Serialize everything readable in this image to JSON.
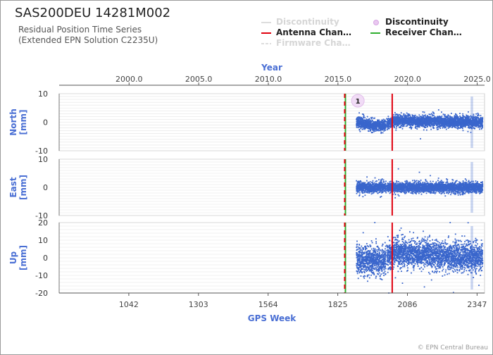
{
  "header": {
    "title": "SAS200DEU 14281M002",
    "subtitle_line1": "Residual Position Time Series",
    "subtitle_line2": "(Extended EPN Solution C2235U)"
  },
  "legend": {
    "items": [
      {
        "label": "Discontinuity",
        "style": "line",
        "color": "#dddddd",
        "dim": true
      },
      {
        "label": "Discontinuity",
        "style": "dot",
        "color": "#e9c8f0",
        "dim": false
      },
      {
        "label": "Antenna Chan…",
        "style": "line",
        "color": "#e0000f",
        "dim": false
      },
      {
        "label": "Receiver Chan…",
        "style": "line",
        "color": "#2fae2f",
        "dim": false
      },
      {
        "label": "Firmware Cha…",
        "style": "dash",
        "color": "#dddddd",
        "dim": true
      }
    ]
  },
  "copyright": "© EPN Central Bureau",
  "colors": {
    "series": "#3a66cc",
    "axis_label": "#4a6fd4",
    "antenna_change": "#e0000f",
    "receiver_change": "#2fae2f",
    "grid": "#e4e4e4"
  },
  "chart_data": {
    "type": "scatter",
    "top_axis": {
      "label": "Year",
      "ticks": [
        "2000.0",
        "2005.0",
        "2010.0",
        "2015.0",
        "2020.0",
        "2025.0"
      ],
      "values": [
        2000.0,
        2005.0,
        2010.0,
        2015.0,
        2020.0,
        2025.0
      ]
    },
    "x_axis": {
      "label": "GPS Week",
      "range": [
        781,
        2375
      ],
      "ticks": [
        "1042",
        "1303",
        "1564",
        "1825",
        "2086",
        "2347"
      ],
      "values": [
        1042,
        1303,
        1564,
        1825,
        2086,
        2347
      ]
    },
    "data_start_week": 1895,
    "data_end_week": 2368,
    "antenna_change_weeks": [
      1851,
      2029
    ],
    "receiver_change_weeks": [
      1851
    ],
    "discontinuity_markers": [
      {
        "week": 1895,
        "label": "1"
      }
    ],
    "panels": [
      {
        "name": "North",
        "ylabel_line1": "North",
        "ylabel_line2": "[mm]",
        "ylim": [
          -10,
          10
        ],
        "yticks": [
          "10",
          "0",
          "-10"
        ],
        "ytick_values": [
          10,
          0,
          -10
        ],
        "noise_mm": 1.0,
        "trend": [
          [
            1895,
            0.0
          ],
          [
            1960,
            -1.2
          ],
          [
            2000,
            -1.0
          ],
          [
            2040,
            0.5
          ],
          [
            2368,
            0.0
          ]
        ]
      },
      {
        "name": "East",
        "ylabel_line1": "East",
        "ylabel_line2": "[mm]",
        "ylim": [
          -10,
          10
        ],
        "yticks": [
          "10",
          "0",
          "-10"
        ],
        "ytick_values": [
          10,
          0,
          -10
        ],
        "noise_mm": 0.9,
        "trend": [
          [
            1895,
            0.0
          ],
          [
            2368,
            0.0
          ]
        ]
      },
      {
        "name": "Up",
        "ylabel_line1": "Up",
        "ylabel_line2": "[mm]",
        "ylim": [
          -20,
          20
        ],
        "yticks": [
          "20",
          "10",
          "0",
          "-10",
          "-20"
        ],
        "ytick_values": [
          20,
          10,
          0,
          -10,
          -20
        ],
        "noise_mm": 4.0,
        "trend": [
          [
            1895,
            -1.0
          ],
          [
            1990,
            -2.0
          ],
          [
            2040,
            3.0
          ],
          [
            2150,
            2.0
          ],
          [
            2368,
            0.0
          ]
        ]
      }
    ]
  }
}
